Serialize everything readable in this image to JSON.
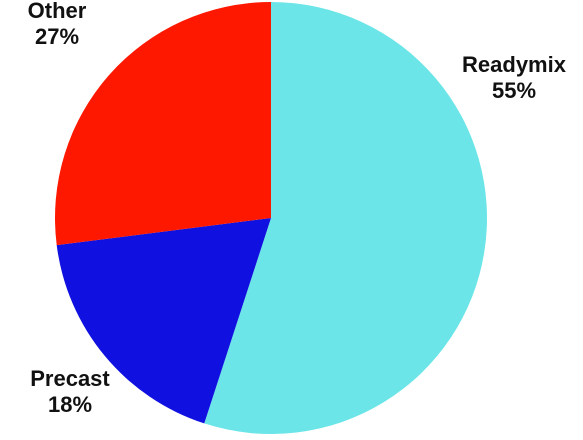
{
  "chart_data": {
    "type": "pie",
    "title": "",
    "slices": [
      {
        "label": "Readymix",
        "value": 55,
        "value_label": "55%",
        "color": "#6BE5E8"
      },
      {
        "label": "Precast",
        "value": 18,
        "value_label": "18%",
        "color": "#1010E0"
      },
      {
        "label": "Other",
        "value": 27,
        "value_label": "27%",
        "color": "#FF1800"
      }
    ],
    "start": "top",
    "direction": "clockwise",
    "legend": "none"
  }
}
